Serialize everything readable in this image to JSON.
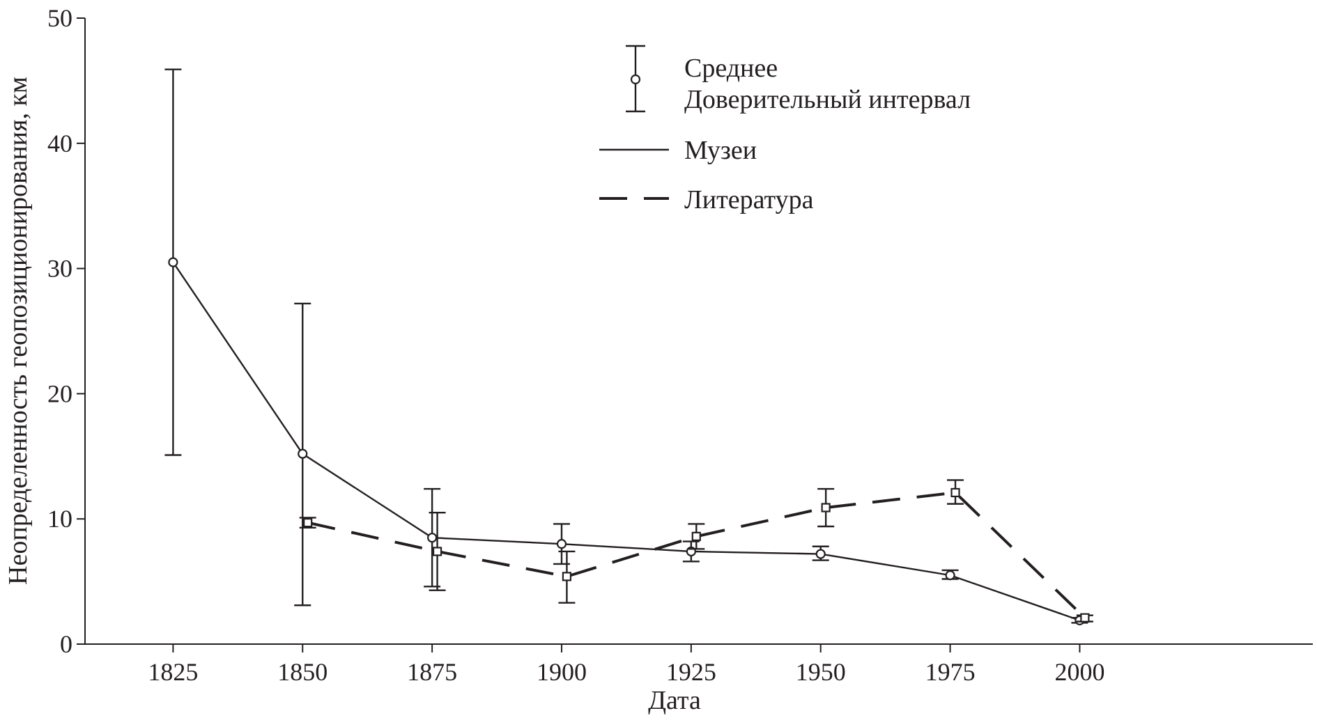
{
  "chart_data": {
    "type": "line",
    "title": "",
    "xlabel": "Дата",
    "ylabel": "Неопределенность геопозиционирования, км",
    "xlim": [
      1808,
      2045
    ],
    "ylim": [
      0,
      50
    ],
    "xticks": [
      1825,
      1850,
      1875,
      1900,
      1925,
      1950,
      1975,
      2000
    ],
    "yticks": [
      0,
      10,
      20,
      30,
      40,
      50
    ],
    "grid": false,
    "legend_placement": "top-center",
    "legend": {
      "marker_entry": [
        "Среднее",
        "Доверительный интервал"
      ],
      "series_entries": [
        "Музеи",
        "Литература"
      ]
    },
    "series": [
      {
        "name": "Музеи",
        "style": "solid",
        "marker": "circle",
        "points": [
          {
            "x": 1825,
            "y": 30.5,
            "low": 15.1,
            "high": 45.9
          },
          {
            "x": 1850,
            "y": 15.2,
            "low": 3.1,
            "high": 27.2
          },
          {
            "x": 1875,
            "y": 8.5,
            "low": 4.6,
            "high": 12.4
          },
          {
            "x": 1900,
            "y": 8.0,
            "low": 6.4,
            "high": 9.6
          },
          {
            "x": 1925,
            "y": 7.4,
            "low": 6.6,
            "high": 8.2
          },
          {
            "x": 1950,
            "y": 7.2,
            "low": 6.7,
            "high": 7.8
          },
          {
            "x": 1975,
            "y": 5.5,
            "low": 5.2,
            "high": 5.9
          },
          {
            "x": 2000,
            "y": 1.9,
            "low": 1.7,
            "high": 2.1
          }
        ]
      },
      {
        "name": "Литература",
        "style": "dashed",
        "marker": "square",
        "points": [
          {
            "x": 1851,
            "y": 9.7,
            "low": 9.3,
            "high": 10.1
          },
          {
            "x": 1876,
            "y": 7.4,
            "low": 4.3,
            "high": 10.5
          },
          {
            "x": 1901,
            "y": 5.4,
            "low": 3.3,
            "high": 7.4
          },
          {
            "x": 1926,
            "y": 8.6,
            "low": 7.6,
            "high": 9.6
          },
          {
            "x": 1951,
            "y": 10.9,
            "low": 9.4,
            "high": 12.4
          },
          {
            "x": 1976,
            "y": 12.1,
            "low": 11.2,
            "high": 13.1
          },
          {
            "x": 2001,
            "y": 2.1,
            "low": 1.8,
            "high": 2.3
          }
        ]
      }
    ]
  }
}
